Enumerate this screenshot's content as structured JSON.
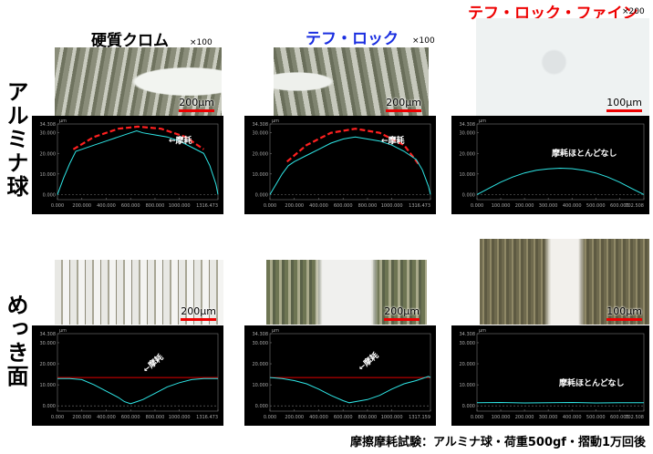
{
  "columns": [
    {
      "title": "硬質クロム",
      "magnification": "×100"
    },
    {
      "title": "テフ・ロック",
      "magnification": "×100"
    },
    {
      "title": "テフ・ロック・ファイン",
      "magnification": "×200"
    }
  ],
  "rows": [
    {
      "label": "アルミナ球"
    },
    {
      "label": "めっき面"
    }
  ],
  "images": [
    {
      "scale": "200μm"
    },
    {
      "scale": "200μm"
    },
    {
      "scale": "100μm"
    },
    {
      "scale": "200μm"
    },
    {
      "scale": "200μm"
    },
    {
      "scale": "100μm"
    }
  ],
  "profile_axes": {
    "y_unit": "μm",
    "ylim": [
      -2.5,
      34.308
    ],
    "yticks": [
      {
        "value": 0,
        "label": "0.000"
      },
      {
        "value": 10,
        "label": "10.000"
      },
      {
        "value": 20,
        "label": "20.000"
      },
      {
        "value": 30,
        "label": "30.000"
      },
      34.308
    ]
  },
  "panels": [
    {
      "annotation": "←摩耗",
      "xlim": [
        0,
        1316.473
      ],
      "xticks": [
        {
          "value": 0,
          "label": "0.000"
        },
        {
          "value": 200,
          "label": "200.000"
        },
        {
          "value": 400,
          "label": "400.000"
        },
        {
          "value": 600,
          "label": "600.000"
        },
        {
          "value": 800,
          "label": "800.000"
        },
        {
          "value": 1000,
          "label": "1000.000"
        },
        1316.473
      ],
      "profile": {
        "x": [
          0,
          50,
          100,
          150,
          200,
          300,
          400,
          500,
          600,
          650,
          700,
          800,
          900,
          1000,
          1100,
          1200,
          1250,
          1300,
          1316.473
        ],
        "y": [
          0,
          8,
          15,
          21,
          22,
          24,
          26,
          28,
          30,
          31,
          30,
          29,
          28,
          26,
          23,
          20,
          14,
          5,
          0
        ]
      },
      "reference": {
        "style": "dashed",
        "x": [
          130,
          300,
          500,
          660,
          850,
          1050,
          1200
        ],
        "y": [
          22,
          28,
          32,
          33,
          32,
          28,
          22
        ]
      }
    },
    {
      "annotation": "←摩耗",
      "xlim": [
        0,
        1316.473
      ],
      "xticks": [
        {
          "value": 0,
          "label": "0.000"
        },
        {
          "value": 200,
          "label": "200.000"
        },
        {
          "value": 400,
          "label": "400.000"
        },
        {
          "value": 600,
          "label": "600.000"
        },
        {
          "value": 800,
          "label": "800.000"
        },
        {
          "value": 1000,
          "label": "1000.000"
        },
        1316.473
      ],
      "profile": {
        "x": [
          0,
          50,
          100,
          150,
          200,
          300,
          400,
          500,
          600,
          700,
          800,
          900,
          1000,
          1100,
          1150,
          1200,
          1250,
          1300,
          1316.473
        ],
        "y": [
          0,
          5,
          10,
          14,
          16,
          19,
          22,
          25,
          27,
          28,
          27,
          26,
          24,
          21,
          19,
          17,
          12,
          4,
          0
        ]
      },
      "reference": {
        "style": "dashed",
        "x": [
          140,
          300,
          500,
          700,
          900,
          1100,
          1230
        ],
        "y": [
          16,
          24,
          30,
          32,
          30,
          24,
          14
        ]
      }
    },
    {
      "annotation": "摩耗ほとんどなし",
      "xlim": [
        0,
        702.508
      ],
      "xticks": [
        {
          "value": 0,
          "label": "0.000"
        },
        {
          "value": 100,
          "label": "100.000"
        },
        {
          "value": 200,
          "label": "200.000"
        },
        {
          "value": 300,
          "label": "300.000"
        },
        {
          "value": 400,
          "label": "400.000"
        },
        {
          "value": 500,
          "label": "500.000"
        },
        {
          "value": 600,
          "label": "600.000"
        },
        702.508
      ],
      "profile": {
        "x": [
          0,
          50,
          100,
          150,
          200,
          250,
          300,
          350,
          400,
          450,
          500,
          550,
          600,
          650,
          702.508
        ],
        "y": [
          0,
          3,
          6,
          8.5,
          10.5,
          11.8,
          12.5,
          12.8,
          12.6,
          11.8,
          10.5,
          8.5,
          6,
          3,
          0
        ]
      }
    },
    {
      "annotation": "←摩耗",
      "xlim": [
        0,
        1316.473
      ],
      "xticks": [
        {
          "value": 0,
          "label": "0.000"
        },
        {
          "value": 200,
          "label": "200.000"
        },
        {
          "value": 400,
          "label": "400.000"
        },
        {
          "value": 600,
          "label": "600.000"
        },
        {
          "value": 800,
          "label": "800.000"
        },
        {
          "value": 1000,
          "label": "1000.000"
        },
        1316.473
      ],
      "profile": {
        "x": [
          0,
          100,
          200,
          300,
          400,
          500,
          550,
          600,
          650,
          700,
          800,
          900,
          1000,
          1100,
          1200,
          1316.473
        ],
        "y": [
          13,
          13,
          12.5,
          10,
          7,
          4,
          2,
          1,
          2,
          3,
          6,
          9,
          11,
          12.5,
          13,
          13
        ]
      },
      "reference": {
        "style": "solid",
        "x": [
          0,
          1316.473
        ],
        "y": [
          13.5,
          13.5
        ]
      }
    },
    {
      "annotation": "←摩耗",
      "xlim": [
        0,
        1317.159
      ],
      "xticks": [
        {
          "value": 0,
          "label": "0.000"
        },
        {
          "value": 200,
          "label": "200.000"
        },
        {
          "value": 400,
          "label": "400.000"
        },
        {
          "value": 600,
          "label": "600.000"
        },
        {
          "value": 800,
          "label": "800.000"
        },
        {
          "value": 1000,
          "label": "1000.000"
        },
        1317.159
      ],
      "profile": {
        "x": [
          0,
          100,
          200,
          300,
          400,
          500,
          600,
          650,
          700,
          800,
          900,
          1000,
          1100,
          1200,
          1300,
          1317.159
        ],
        "y": [
          13.5,
          13,
          12,
          10.5,
          8,
          5,
          2.5,
          1.5,
          2,
          3,
          5,
          8,
          10.5,
          12,
          14,
          13.5
        ]
      },
      "reference": {
        "style": "solid",
        "x": [
          0,
          1317.159
        ],
        "y": [
          13.5,
          13.5
        ]
      }
    },
    {
      "annotation": "摩耗ほとんどなし",
      "xlim": [
        0,
        702.508
      ],
      "xticks": [
        {
          "value": 0,
          "label": "0.000"
        },
        {
          "value": 100,
          "label": "100.000"
        },
        {
          "value": 200,
          "label": "200.000"
        },
        {
          "value": 300,
          "label": "300.000"
        },
        {
          "value": 400,
          "label": "400.000"
        },
        {
          "value": 500,
          "label": "500.000"
        },
        {
          "value": 600,
          "label": "600.000"
        },
        702.508
      ],
      "profile": {
        "x": [
          0,
          100,
          200,
          300,
          400,
          500,
          600,
          702.508
        ],
        "y": [
          1.5,
          1.6,
          1.4,
          1.5,
          1.6,
          1.4,
          1.5,
          1.5
        ]
      }
    }
  ],
  "caption": "摩擦摩耗試験：アルミナ球・荷重500gf・摺動1万回後"
}
